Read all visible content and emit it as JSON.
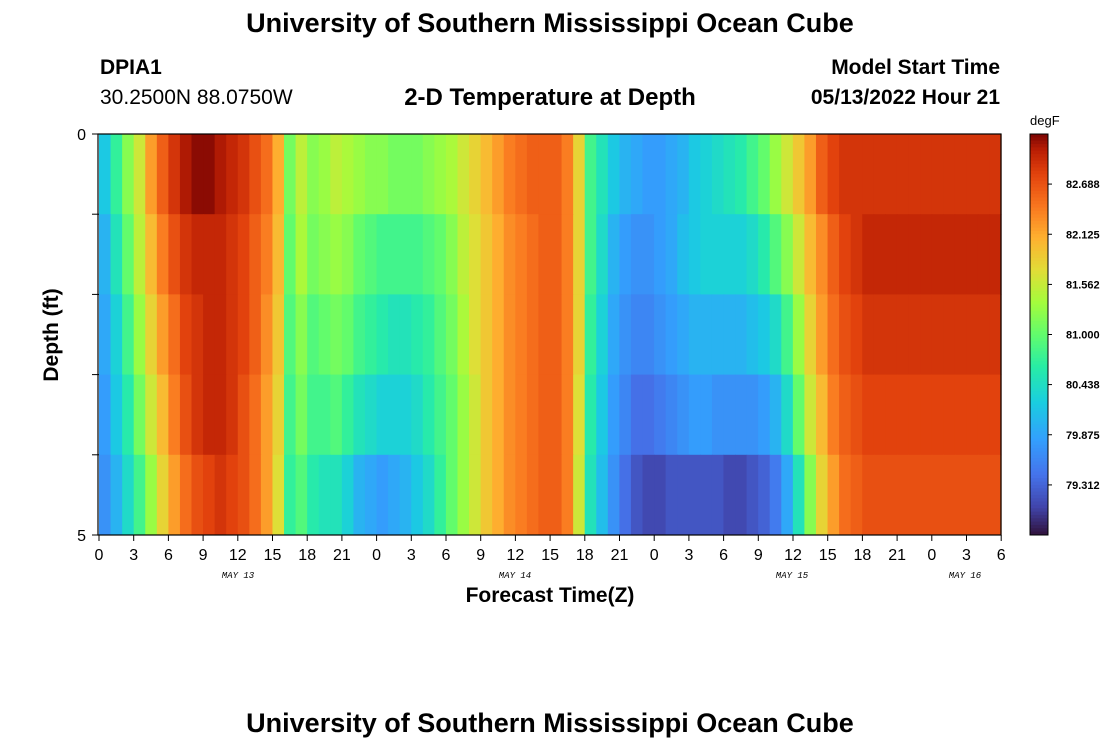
{
  "page": {
    "title": "University of Southern Mississippi Ocean Cube",
    "footer_title": "University of Southern Mississippi Ocean Cube",
    "station_id": "DPIA1",
    "station_coords": "30.2500N  88.0750W",
    "subtitle": "2-D Temperature at Depth",
    "model_label": "Model Start Time",
    "model_time": "05/13/2022 Hour 21"
  },
  "chart_data": {
    "type": "heatmap",
    "title": "2-D Temperature at Depth",
    "xlabel": "Forecast Time(Z)",
    "ylabel": "Depth (ft)",
    "x_ticks": [
      "0",
      "3",
      "6",
      "9",
      "12",
      "15",
      "18",
      "21",
      "0",
      "3",
      "6",
      "9",
      "12",
      "15",
      "18",
      "21",
      "0",
      "3",
      "6",
      "9",
      "12",
      "15",
      "18",
      "21",
      "0",
      "3",
      "6"
    ],
    "day_labels": [
      "MAY 13",
      "MAY 14",
      "MAY 15",
      "MAY 16"
    ],
    "y_ticks": [
      "0",
      "5"
    ],
    "ylim": [
      0,
      5
    ],
    "colorbar": {
      "unit": "degF",
      "range": [
        78.75,
        83.25
      ],
      "ticks": [
        "82.688",
        "82.125",
        "81.562",
        "81.000",
        "80.438",
        "79.875",
        "79.312"
      ],
      "tick_values": [
        82.688,
        82.125,
        81.562,
        81.0,
        80.438,
        79.875,
        79.312
      ]
    },
    "grid": false,
    "rows": 5,
    "cols": 78,
    "row_labels_depth_ft": [
      "0-1",
      "1-2",
      "2-3",
      "3-4",
      "4-5"
    ],
    "values_degF_by_depth_row": [
      [
        80.2,
        80.7,
        81.2,
        81.6,
        82.2,
        82.6,
        82.9,
        83.1,
        83.2,
        83.2,
        83.1,
        83.0,
        82.9,
        82.7,
        82.5,
        82.1,
        81.1,
        81.5,
        81.2,
        81.3,
        81.5,
        81.4,
        81.3,
        81.2,
        81.2,
        81.1,
        81.1,
        81.1,
        81.2,
        81.3,
        81.4,
        81.6,
        81.8,
        82.0,
        82.2,
        82.4,
        82.5,
        82.6,
        82.6,
        82.6,
        82.4,
        81.8,
        80.8,
        80.5,
        80.2,
        80.0,
        79.9,
        79.8,
        79.8,
        79.9,
        80.0,
        80.2,
        80.3,
        80.4,
        80.5,
        80.6,
        80.8,
        81.0,
        81.3,
        81.6,
        81.9,
        82.2,
        82.6,
        82.8,
        82.9,
        82.9,
        82.9,
        82.9,
        82.9,
        82.9,
        82.9,
        82.9,
        82.9,
        82.9,
        82.9,
        82.9,
        82.9,
        82.9
      ],
      [
        80.0,
        80.5,
        81.0,
        81.5,
        82.0,
        82.4,
        82.7,
        82.9,
        83.0,
        83.0,
        83.0,
        82.9,
        82.8,
        82.6,
        82.4,
        82.0,
        81.0,
        81.4,
        81.1,
        81.2,
        81.3,
        81.2,
        81.0,
        80.9,
        80.8,
        80.8,
        80.8,
        80.8,
        80.9,
        81.0,
        81.2,
        81.5,
        81.7,
        81.9,
        82.1,
        82.3,
        82.4,
        82.5,
        82.6,
        82.6,
        82.4,
        81.8,
        80.8,
        80.4,
        80.0,
        79.8,
        79.7,
        79.7,
        79.8,
        79.9,
        80.1,
        80.2,
        80.3,
        80.3,
        80.3,
        80.3,
        80.4,
        80.6,
        80.9,
        81.2,
        81.6,
        82.0,
        82.3,
        82.6,
        82.8,
        82.9,
        83.0,
        83.0,
        83.0,
        83.0,
        83.0,
        83.0,
        83.0,
        83.0,
        83.0,
        83.0,
        83.0,
        83.0
      ],
      [
        79.9,
        80.3,
        80.8,
        81.3,
        81.8,
        82.2,
        82.5,
        82.8,
        82.9,
        83.0,
        83.0,
        82.9,
        82.8,
        82.6,
        82.3,
        81.9,
        80.9,
        81.2,
        80.9,
        81.0,
        81.1,
        81.0,
        80.8,
        80.7,
        80.6,
        80.5,
        80.5,
        80.6,
        80.7,
        80.9,
        81.1,
        81.4,
        81.7,
        81.9,
        82.1,
        82.3,
        82.4,
        82.5,
        82.6,
        82.6,
        82.4,
        81.8,
        80.7,
        80.3,
        79.9,
        79.7,
        79.6,
        79.6,
        79.7,
        79.8,
        79.9,
        80.0,
        80.0,
        80.0,
        80.0,
        80.0,
        80.1,
        80.2,
        80.4,
        80.8,
        81.3,
        81.8,
        82.2,
        82.5,
        82.7,
        82.8,
        82.9,
        82.9,
        82.9,
        82.9,
        82.9,
        82.9,
        82.9,
        82.9,
        82.9,
        82.9,
        82.9,
        82.9
      ],
      [
        79.8,
        80.2,
        80.6,
        81.1,
        81.6,
        82.0,
        82.4,
        82.7,
        82.9,
        83.0,
        83.0,
        82.9,
        82.7,
        82.5,
        82.2,
        81.8,
        80.8,
        81.1,
        80.8,
        80.8,
        80.9,
        80.7,
        80.5,
        80.4,
        80.3,
        80.3,
        80.3,
        80.4,
        80.6,
        80.8,
        81.0,
        81.3,
        81.6,
        81.9,
        82.1,
        82.3,
        82.4,
        82.5,
        82.6,
        82.6,
        82.4,
        81.7,
        80.6,
        80.2,
        79.8,
        79.6,
        79.4,
        79.4,
        79.5,
        79.6,
        79.7,
        79.8,
        79.8,
        79.7,
        79.7,
        79.7,
        79.7,
        79.8,
        80.0,
        80.4,
        81.0,
        81.6,
        82.0,
        82.4,
        82.6,
        82.7,
        82.8,
        82.8,
        82.8,
        82.8,
        82.8,
        82.8,
        82.8,
        82.8,
        82.8,
        82.8,
        82.8,
        82.8
      ],
      [
        79.7,
        80.0,
        80.4,
        80.8,
        81.3,
        81.8,
        82.2,
        82.5,
        82.7,
        82.8,
        82.9,
        82.8,
        82.7,
        82.5,
        82.2,
        81.7,
        80.7,
        80.9,
        80.6,
        80.5,
        80.5,
        80.3,
        80.0,
        79.9,
        79.8,
        79.9,
        80.0,
        80.2,
        80.4,
        80.7,
        81.0,
        81.3,
        81.6,
        81.9,
        82.1,
        82.3,
        82.4,
        82.5,
        82.6,
        82.6,
        82.4,
        81.6,
        80.5,
        80.1,
        79.7,
        79.4,
        79.2,
        79.1,
        79.1,
        79.2,
        79.2,
        79.2,
        79.2,
        79.2,
        79.1,
        79.1,
        79.2,
        79.3,
        79.5,
        79.9,
        80.5,
        81.2,
        81.8,
        82.2,
        82.5,
        82.6,
        82.7,
        82.7,
        82.7,
        82.7,
        82.7,
        82.7,
        82.7,
        82.7,
        82.7,
        82.7,
        82.7,
        82.7
      ]
    ]
  }
}
